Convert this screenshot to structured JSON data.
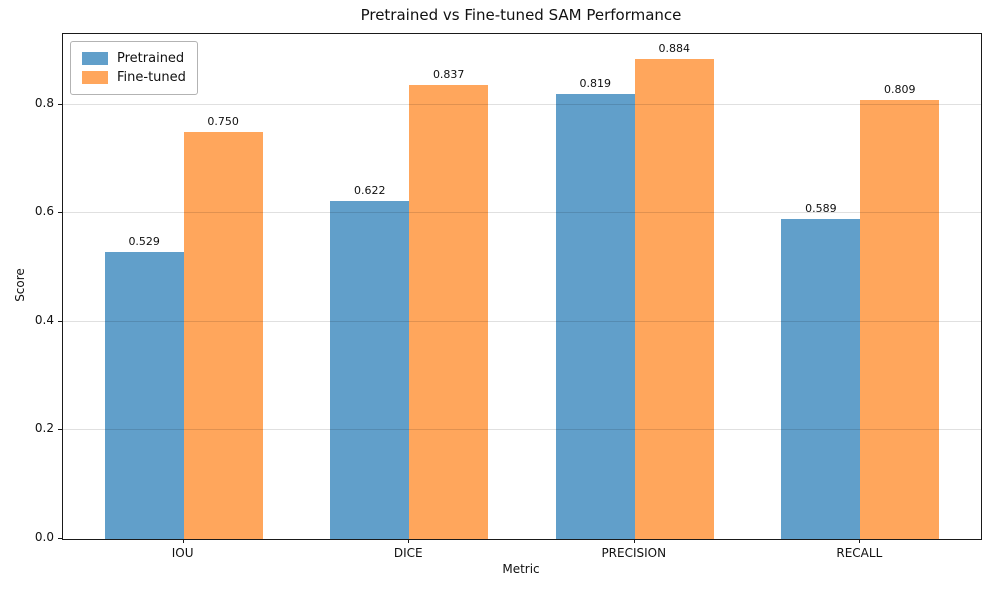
{
  "chart_data": {
    "type": "bar",
    "title": "Pretrained vs Fine-tuned SAM Performance",
    "xlabel": "Metric",
    "ylabel": "Score",
    "categories": [
      "IOU",
      "DICE",
      "PRECISION",
      "RECALL"
    ],
    "series": [
      {
        "name": "Pretrained",
        "color": "#619fca",
        "values": [
          0.529,
          0.622,
          0.819,
          0.589
        ]
      },
      {
        "name": "Fine-tuned",
        "color": "#ffa65c",
        "values": [
          0.75,
          0.837,
          0.884,
          0.809
        ]
      }
    ],
    "ylim": [
      0,
      0.93
    ],
    "yticks": [
      0.0,
      0.2,
      0.4,
      0.6,
      0.8
    ],
    "ytick_decimals": 1,
    "value_label_decimals": 3,
    "grid": "horizontal-over-bars",
    "grid_color_rgba": "rgba(0,0,0,0.12)",
    "legend_position": "upper-left",
    "bar_group_width_units": 0.35,
    "background_color": "#ffffff",
    "spine_color": "#1a1a1a"
  }
}
